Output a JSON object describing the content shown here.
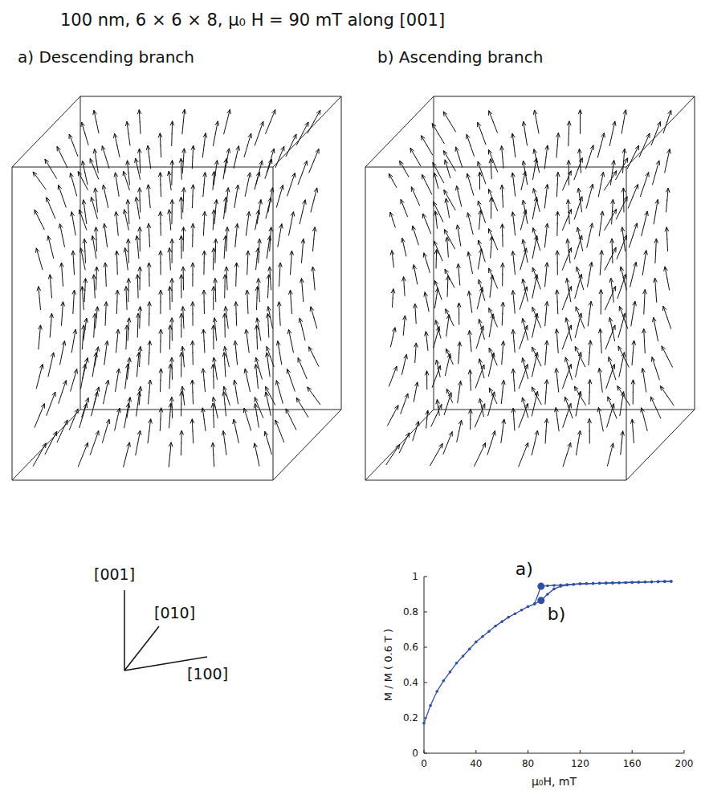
{
  "title": "100 nm, 6 × 6 × 8, μ₀ H = 90 mT along [001]",
  "panels": [
    {
      "label": "a) Descending branch"
    },
    {
      "label": "b) Ascending branch"
    }
  ],
  "axes_triad": [
    "[001]",
    "[010]",
    "[100]"
  ],
  "chart_data": {
    "type": "line",
    "x_label": "μ₀H, mT",
    "y_label": "M / M ( 0.6 T )",
    "x": [
      0,
      5,
      10,
      15,
      20,
      25,
      30,
      35,
      40,
      45,
      50,
      55,
      60,
      65,
      70,
      75,
      80,
      85,
      90,
      95,
      100,
      105,
      110,
      115,
      120,
      125,
      130,
      135,
      140,
      145,
      150,
      155,
      160,
      165,
      170,
      175,
      180,
      185,
      190
    ],
    "series": [
      {
        "color": "#2e4fa8",
        "marker": "circle",
        "line_style": "solid",
        "values": [
          0.17,
          0.27,
          0.35,
          0.41,
          0.46,
          0.51,
          0.55,
          0.59,
          0.63,
          0.66,
          0.69,
          0.72,
          0.745,
          0.77,
          0.79,
          0.81,
          0.83,
          0.845,
          0.865,
          0.9,
          0.93,
          0.945,
          0.952,
          0.956,
          0.959,
          0.96,
          0.961,
          0.962,
          0.963,
          0.964,
          0.965,
          0.966,
          0.967,
          0.968,
          0.969,
          0.97,
          0.971,
          0.972,
          0.973
        ]
      },
      {
        "color": "#2e4fa8",
        "marker": "circle",
        "line_style": "solid",
        "values": [
          null,
          null,
          null,
          null,
          null,
          null,
          null,
          null,
          null,
          null,
          null,
          null,
          null,
          null,
          null,
          null,
          null,
          0.845,
          0.945,
          0.948,
          0.95,
          0.952,
          0.954,
          0.956,
          0.959,
          0.96,
          0.961,
          0.962,
          0.963,
          0.964,
          0.965,
          0.966,
          0.967,
          0.968,
          0.969,
          0.97,
          0.971,
          0.972,
          0.973
        ]
      }
    ],
    "annotations": [
      {
        "text": "a)",
        "x": 90,
        "y": 0.945
      },
      {
        "text": "b)",
        "x": 90,
        "y": 0.865
      }
    ],
    "xlim": [
      0,
      200
    ],
    "xticks": [
      0,
      40,
      80,
      120,
      160,
      200
    ],
    "ylim": [
      0,
      1
    ],
    "yticks": [
      0,
      0.2,
      0.4,
      0.6,
      0.8,
      1
    ],
    "grid": false
  }
}
